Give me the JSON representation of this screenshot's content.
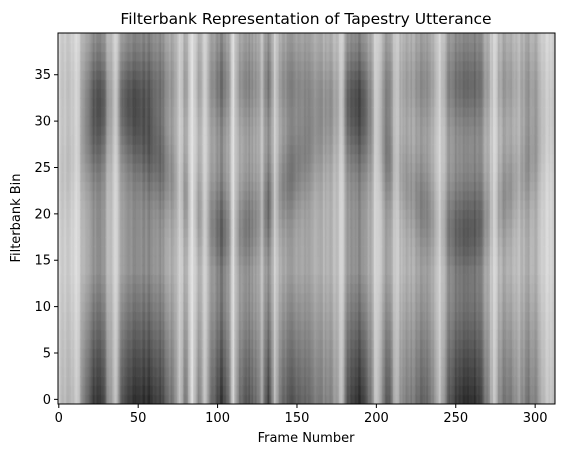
{
  "chart_data": {
    "type": "heatmap",
    "title": "Filterbank Representation of Tapestry Utterance",
    "xlabel": "Frame Number",
    "ylabel": "Filterbank Bin",
    "xlim": [
      -0.5,
      312.5
    ],
    "ylim": [
      -0.5,
      39.5
    ],
    "x_ticks": [
      0,
      50,
      100,
      150,
      200,
      250,
      300
    ],
    "y_ticks": [
      0,
      5,
      10,
      15,
      20,
      25,
      30,
      35
    ],
    "colormap": "gray",
    "n_frames": 313,
    "n_bins": 40,
    "grid": false,
    "legend": "none",
    "frame_darkness_profile": [
      [
        0,
        0.15
      ],
      [
        8,
        0.25
      ],
      [
        12,
        0.15
      ],
      [
        16,
        0.55
      ],
      [
        22,
        0.85
      ],
      [
        28,
        0.8
      ],
      [
        32,
        0.35
      ],
      [
        36,
        0.2
      ],
      [
        40,
        0.75
      ],
      [
        48,
        0.9
      ],
      [
        58,
        0.9
      ],
      [
        66,
        0.75
      ],
      [
        72,
        0.5
      ],
      [
        76,
        0.15
      ],
      [
        80,
        0.55
      ],
      [
        84,
        0.05
      ],
      [
        88,
        0.5
      ],
      [
        92,
        0.15
      ],
      [
        96,
        0.55
      ],
      [
        102,
        0.85
      ],
      [
        106,
        0.7
      ],
      [
        110,
        0.1
      ],
      [
        114,
        0.6
      ],
      [
        118,
        0.75
      ],
      [
        124,
        0.6
      ],
      [
        128,
        0.35
      ],
      [
        132,
        0.85
      ],
      [
        136,
        0.2
      ],
      [
        140,
        0.6
      ],
      [
        148,
        0.75
      ],
      [
        156,
        0.6
      ],
      [
        164,
        0.5
      ],
      [
        172,
        0.45
      ],
      [
        178,
        0.2
      ],
      [
        182,
        0.7
      ],
      [
        188,
        0.9
      ],
      [
        192,
        0.85
      ],
      [
        196,
        0.55
      ],
      [
        200,
        0.1
      ],
      [
        204,
        0.5
      ],
      [
        208,
        0.75
      ],
      [
        212,
        0.2
      ],
      [
        216,
        0.45
      ],
      [
        224,
        0.55
      ],
      [
        230,
        0.65
      ],
      [
        236,
        0.45
      ],
      [
        240,
        0.2
      ],
      [
        246,
        0.7
      ],
      [
        252,
        0.9
      ],
      [
        258,
        0.95
      ],
      [
        264,
        0.85
      ],
      [
        270,
        0.5
      ],
      [
        274,
        0.15
      ],
      [
        278,
        0.5
      ],
      [
        284,
        0.6
      ],
      [
        290,
        0.35
      ],
      [
        296,
        0.55
      ],
      [
        302,
        0.4
      ],
      [
        306,
        0.2
      ],
      [
        312,
        0.15
      ]
    ]
  }
}
